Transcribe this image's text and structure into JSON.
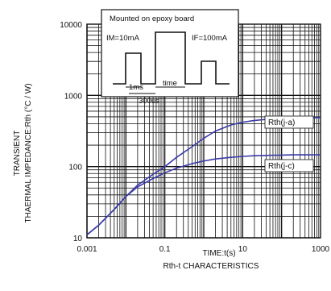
{
  "chart_data": {
    "type": "line",
    "title": "",
    "caption": "Rth-t CHARACTERISTICS",
    "xlabel": "TIME:t(s)",
    "ylabel_line1": "TRANSIENT",
    "ylabel_line2": "THAERMAL IMPEDANCE:Rth (°C / W)",
    "x_scale": "log",
    "y_scale": "log",
    "xlim": [
      0.001,
      1000
    ],
    "ylim": [
      10,
      10000
    ],
    "x_ticks": [
      {
        "value": 0.001,
        "label": "0.001"
      },
      {
        "value": 0.1,
        "label": "0.1"
      },
      {
        "value": 10,
        "label": "10"
      },
      {
        "value": 1000,
        "label": "1000"
      }
    ],
    "y_ticks": [
      {
        "value": 10,
        "label": "10"
      },
      {
        "value": 100,
        "label": "100"
      },
      {
        "value": 1000,
        "label": "1000"
      },
      {
        "value": 10000,
        "label": "10000"
      }
    ],
    "grid": true,
    "line_color": "#3a3aa8",
    "series": [
      {
        "name": "Rth(j-a)",
        "x": [
          0.001,
          0.002,
          0.005,
          0.01,
          0.02,
          0.05,
          0.1,
          0.2,
          0.5,
          1,
          2,
          5,
          10,
          20,
          50,
          100,
          200,
          500,
          1000
        ],
        "y": [
          11,
          15,
          25,
          38,
          55,
          78,
          100,
          135,
          190,
          250,
          315,
          385,
          420,
          445,
          465,
          475,
          480,
          485,
          487
        ]
      },
      {
        "name": "Rth(j-c)",
        "x": [
          0.001,
          0.002,
          0.005,
          0.01,
          0.02,
          0.05,
          0.1,
          0.2,
          0.5,
          1,
          2,
          5,
          10,
          20,
          50,
          100,
          200,
          500,
          1000
        ],
        "y": [
          11,
          15,
          25,
          38,
          52,
          68,
          82,
          95,
          110,
          120,
          128,
          135,
          139,
          142,
          144,
          145,
          146,
          146,
          146
        ]
      }
    ],
    "inset": {
      "title": "Mounted on epoxy board",
      "label_im": "IM=10mA",
      "label_if": "IF=100mA",
      "label_time": "time",
      "label_1ms": "1ms",
      "label_300us": "300us"
    }
  }
}
